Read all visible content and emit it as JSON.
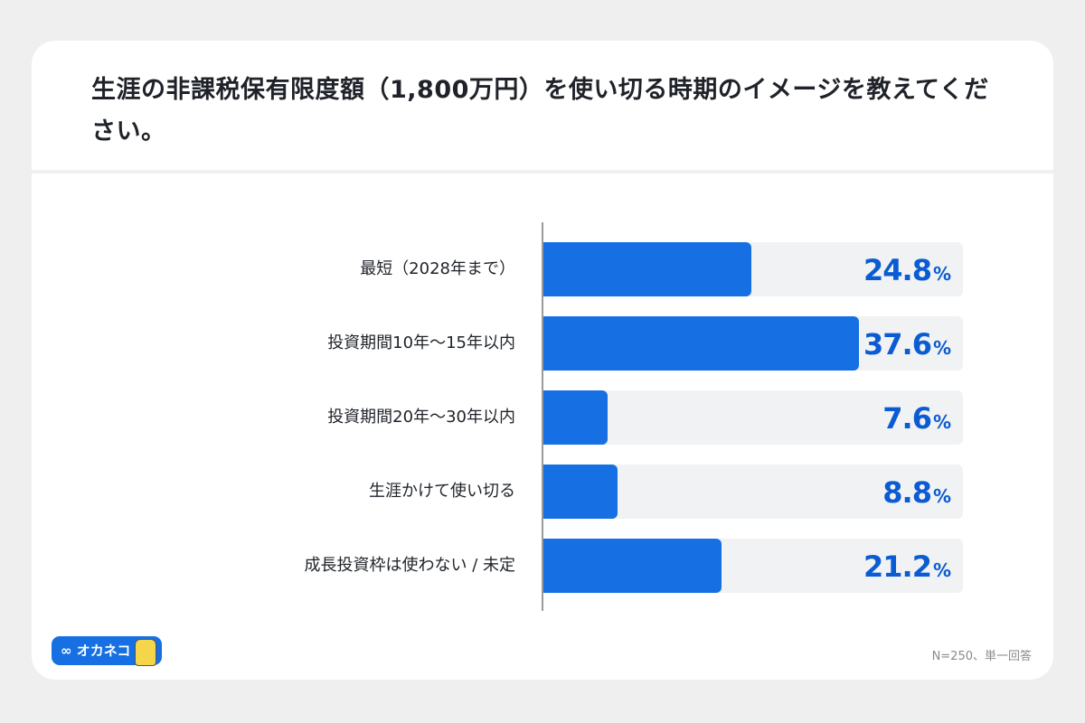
{
  "chart_data": {
    "type": "bar",
    "orientation": "horizontal",
    "title": "生涯の非課税保有限度額（1,800万円）を使い切る時期のイメージを教えてください。",
    "categories": [
      "最短（2028年まで）",
      "投資期間10年〜15年以内",
      "投資期間20年〜30年以内",
      "生涯かけて使い切る",
      "成長投資枠は使わない / 未定"
    ],
    "values": [
      24.8,
      37.6,
      7.6,
      8.8,
      21.2
    ],
    "value_labels": [
      "24.8",
      "37.6",
      "7.6",
      "8.8",
      "21.2"
    ],
    "unit": "%",
    "xlim": [
      0,
      50
    ],
    "bar_color": "#1670e3",
    "track_color": "#f1f2f4",
    "value_color": "#0b5cd3"
  },
  "footer": {
    "logo_text": "∞ オカネコ",
    "note": "N=250、単一回答"
  }
}
